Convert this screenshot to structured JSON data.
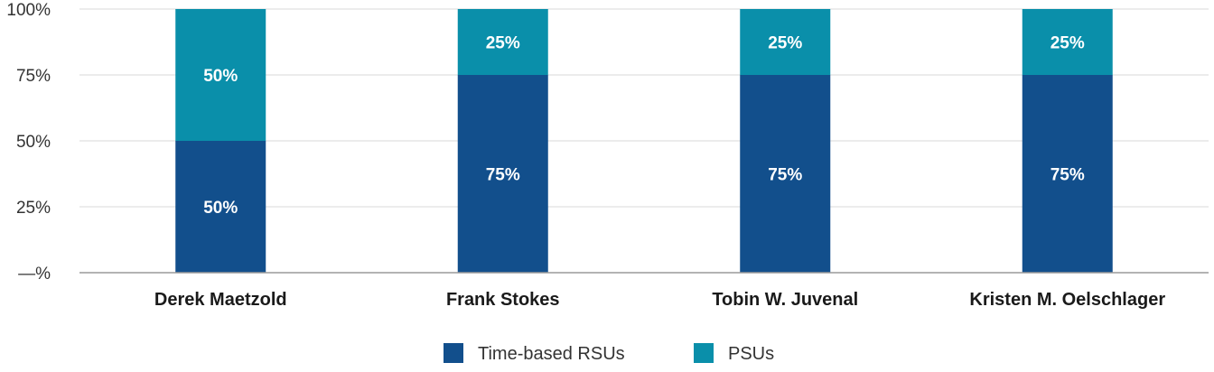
{
  "chart_data": {
    "type": "bar",
    "stacked": true,
    "categories": [
      "Derek Maetzold",
      "Frank Stokes",
      "Tobin W. Juvenal",
      "Kristen M. Oelschlager"
    ],
    "series": [
      {
        "name": "Time-based RSUs",
        "values": [
          50,
          75,
          75,
          75
        ],
        "labels": [
          "50%",
          "75%",
          "75%",
          "75%"
        ],
        "color": "#124f8c"
      },
      {
        "name": "PSUs",
        "values": [
          50,
          25,
          25,
          25
        ],
        "labels": [
          "50%",
          "25%",
          "25%",
          "25%"
        ],
        "color": "#0a8faa"
      }
    ],
    "yticks": [
      {
        "value": 0,
        "label": "—%"
      },
      {
        "value": 25,
        "label": "25%"
      },
      {
        "value": 50,
        "label": "50%"
      },
      {
        "value": 75,
        "label": "75%"
      },
      {
        "value": 100,
        "label": "100%"
      }
    ],
    "ylim": [
      0,
      100
    ],
    "grid": true,
    "legend_position": "bottom",
    "title": "",
    "xlabel": "",
    "ylabel": ""
  },
  "colors": {
    "grid": "#e6e6e6",
    "axis": "#9a9a9a"
  }
}
